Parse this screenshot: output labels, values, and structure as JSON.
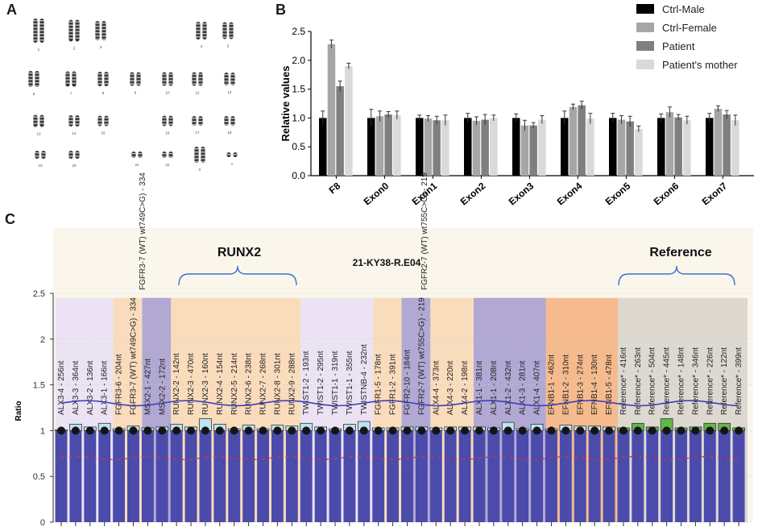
{
  "panel_labels": {
    "a": "A",
    "b": "B",
    "c": "C"
  },
  "panel_a": {
    "karyotype_numbers": [
      "1",
      "2",
      "3",
      "4",
      "5",
      "6",
      "7",
      "8",
      "9",
      "10",
      "11",
      "12",
      "13",
      "14",
      "15",
      "16",
      "17",
      "18",
      "19",
      "20",
      "21",
      "22",
      "X",
      "Y"
    ]
  },
  "chart_data": [
    {
      "type": "bar",
      "panel": "B",
      "title": "",
      "xlabel": "",
      "ylabel": "Relative values",
      "ylim": [
        0,
        2.5
      ],
      "yticks": [
        "0.0",
        "0.5",
        "1.0",
        "1.5",
        "2.0",
        "2.5"
      ],
      "categories": [
        "F8",
        "Exon0",
        "Exon1",
        "Exon2",
        "Exon3",
        "Exon4",
        "Exon5",
        "Exon6",
        "Exon7"
      ],
      "legend_position": "top-right",
      "series": [
        {
          "name": "Ctrl-Male",
          "color": "#000000",
          "values": [
            1.0,
            1.0,
            1.0,
            1.0,
            1.0,
            1.0,
            1.0,
            1.0,
            1.0
          ],
          "errors": [
            0.12,
            0.15,
            0.05,
            0.08,
            0.07,
            0.12,
            0.08,
            0.07,
            0.08
          ]
        },
        {
          "name": "Ctrl-Female",
          "color": "#a6a6a6",
          "values": [
            2.28,
            1.03,
            0.99,
            0.95,
            0.87,
            1.19,
            0.97,
            1.1,
            1.16
          ]
        },
        {
          "name": "Patient",
          "color": "#7f7f7f",
          "values": [
            1.55,
            1.06,
            0.96,
            0.97,
            0.87,
            1.22,
            0.94,
            1.01,
            1.06
          ]
        },
        {
          "name": "Patient's mother",
          "color": "#d9d9d9",
          "values": [
            1.9,
            1.05,
            0.96,
            1.0,
            0.97,
            0.99,
            0.81,
            0.96,
            0.96
          ]
        }
      ]
    },
    {
      "type": "bar",
      "panel": "C",
      "title": "21-KY38-R.E04",
      "ylabel": "Ratio",
      "ylim": [
        0,
        2.5
      ],
      "yticks": [
        "0",
        "0.5",
        "1",
        "1.5",
        "2",
        "2.5"
      ],
      "upper_threshold": 1.3,
      "lower_threshold": 0.7,
      "groups": [
        {
          "name": "ALX3",
          "color": "#e7dff4",
          "probes": [
            "ALX3-4 - 256nt",
            "ALX3-3 - 364nt",
            "ALX3-2 - 136nt",
            "ALX3-1 - 166nt"
          ],
          "values": [
            1.01,
            1.07,
            1.04,
            1.08
          ]
        },
        {
          "name": "FGFR3",
          "color": "#f8d7b4",
          "probes": [
            "FGFR3-6 - 204nt",
            "FGFR3-7 (WT) wt749C>G) - 334"
          ],
          "values": [
            1.02,
            1.05
          ]
        },
        {
          "name": "MSX2",
          "color": "#a39ad0",
          "probes": [
            "MSX2-1 - 427nt",
            "MSX2-2 - 172nt"
          ],
          "values": [
            1.03,
            1.04
          ]
        },
        {
          "name": "RUNX2",
          "color": "#f8d7b4",
          "probes": [
            "RUNX2-2 - 142nt",
            "RUNX2-3 - 470nt",
            "RUNX2-3 - 160nt",
            "RUNX2-4 - 154nt",
            "RUNX2-5 - 214nt",
            "RUNX2-6 - 238nt",
            "RUNX2-7 - 268nt",
            "RUNX2-8 - 301nt",
            "RUNX2-9 - 288nt"
          ],
          "values": [
            1.07,
            1.04,
            1.13,
            1.07,
            1.02,
            1.06,
            1.02,
            1.06,
            1.05
          ]
        },
        {
          "name": "TWIST1",
          "color": "#e7dff4",
          "probes": [
            "TWIST1-2 - 193nt",
            "TWIST1-2 - 295nt",
            "TWIST1-1 - 319nt",
            "TWIST1-1 - 355nt",
            "TWISTNB-4 - 232nt"
          ],
          "values": [
            1.08,
            1.04,
            1.02,
            1.07,
            1.1
          ]
        },
        {
          "name": "FGFR1",
          "color": "#f8d7b4",
          "probes": [
            "FGFR1-5 - 178nt",
            "FGFR1-2 - 391nt"
          ],
          "values": [
            1.03,
            1.03
          ]
        },
        {
          "name": "FGFR2",
          "color": "#a39ad0",
          "probes": [
            "FGFR2-10 - 184nt",
            "FGFR2-7 (WT) wt755C>G) - 219"
          ],
          "values": [
            1.04,
            1.04
          ]
        },
        {
          "name": "ALX4",
          "color": "#f8d7b4",
          "probes": [
            "ALX4-4 - 373nt",
            "ALX4-3 - 220nt",
            "ALX4-2 - 198nt"
          ],
          "values": [
            1.03,
            1.04,
            1.04
          ]
        },
        {
          "name": "ALX1",
          "color": "#a39ad0",
          "probes": [
            "ALX1-1 - 381nt",
            "ALX1-1 - 208nt",
            "ALX1-2 - 432nt",
            "ALX1-3 - 281nt",
            "ALX1-4 - 407nt"
          ],
          "values": [
            1.04,
            1.03,
            1.09,
            1.02,
            1.07
          ]
        },
        {
          "name": "EFNB1",
          "color": "#f3b07e",
          "probes": [
            "EFNB1-1 - 462nt",
            "EFNB1-2 - 310nt",
            "EFNB1-3 - 274nt",
            "EFNB1-4 - 130nt",
            "EFNB1-5 - 478nt"
          ],
          "values": [
            1.02,
            1.06,
            1.05,
            1.05,
            1.04
          ]
        },
        {
          "name": "Reference",
          "color": "#d7d3cc",
          "probes": [
            "Reference* - 416nt",
            "Reference* - 263nt",
            "Reference* - 504nt",
            "Reference* - 445nt",
            "Reference* - 148nt",
            "Reference* - 346nt",
            "Reference* - 226nt",
            "Reference* - 122nt",
            "Reference* - 399nt"
          ],
          "values": [
            1.03,
            1.08,
            1.04,
            1.13,
            1.03,
            1.04,
            1.08,
            1.08,
            1.03
          ]
        }
      ],
      "annotations": {
        "runx2": "RUNX2",
        "reference": "Reference",
        "sample_id": "21-KY38-R.E04",
        "fgfr3_label": "FGFR3-7 (WT) wt749C>G) - 334",
        "fgfr2_label": "FGFR2-7 (WT) wt755C>G) - 219"
      },
      "colors": {
        "bar": "#4b4bab",
        "dot": "#141414",
        "upper_line": "#4040b8",
        "lower_line": "#e03030",
        "ref_highlight": "#62b74a"
      }
    }
  ]
}
